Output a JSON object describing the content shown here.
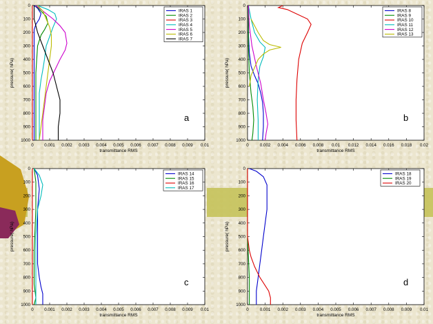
{
  "chart_data": [
    {
      "type": "line",
      "panel_letter": "a",
      "xlabel": "transmittance  RMS",
      "ylabel": "pressure(  hPa)",
      "xlim": [
        0,
        0.01
      ],
      "ylim": [
        1000,
        0
      ],
      "x_ticks": [
        "0",
        "0.001",
        "0.002",
        "0.003",
        "0.004",
        "0.005",
        "0.006",
        "0.007",
        "0.008",
        "0.009",
        "0.01"
      ],
      "y_ticks": [
        "0",
        "100",
        "200",
        "300",
        "400",
        "500",
        "600",
        "700",
        "800",
        "900",
        "1000"
      ],
      "legend_position": "top-right",
      "series": [
        {
          "name": "IRAS 1",
          "color": "#0000cc",
          "points": [
            [
              0.0001,
              0
            ],
            [
              0.0003,
              20
            ],
            [
              0.0005,
              60
            ],
            [
              0.0004,
              100
            ],
            [
              0.0002,
              140
            ],
            [
              0.0001,
              180
            ],
            [
              0.0001,
              250
            ],
            [
              0.0001,
              400
            ],
            [
              0.0001,
              700
            ],
            [
              0.0001,
              1000
            ]
          ]
        },
        {
          "name": "IRAS 2",
          "color": "#008800",
          "points": [
            [
              0.0002,
              0
            ],
            [
              0.0004,
              30
            ],
            [
              0.0008,
              80
            ],
            [
              0.0009,
              130
            ],
            [
              0.0007,
              180
            ],
            [
              0.0005,
              220
            ],
            [
              0.0003,
              300
            ],
            [
              0.0002,
              500
            ],
            [
              0.0002,
              800
            ],
            [
              0.0002,
              1000
            ]
          ]
        },
        {
          "name": "IRAS 3",
          "color": "#dd0000",
          "points": [
            [
              0,
              0
            ],
            [
              0,
              200
            ],
            [
              0,
              500
            ],
            [
              0,
              800
            ],
            [
              0,
              1000
            ]
          ]
        },
        {
          "name": "IRAS 4",
          "color": "#00bbbb",
          "points": [
            [
              0.0003,
              0
            ],
            [
              0.0009,
              30
            ],
            [
              0.0013,
              60
            ],
            [
              0.0014,
              100
            ],
            [
              0.0012,
              160
            ],
            [
              0.001,
              230
            ],
            [
              0.0008,
              300
            ],
            [
              0.0007,
              400
            ],
            [
              0.0006,
              480
            ],
            [
              0.0005,
              550
            ],
            [
              0.0004,
              650
            ],
            [
              0.0004,
              750
            ],
            [
              0.0004,
              850
            ],
            [
              0.0004,
              1000
            ]
          ]
        },
        {
          "name": "IRAS 5",
          "color": "#cc00cc",
          "points": [
            [
              0.0002,
              0
            ],
            [
              0.0006,
              40
            ],
            [
              0.0012,
              100
            ],
            [
              0.0016,
              150
            ],
            [
              0.0019,
              200
            ],
            [
              0.002,
              280
            ],
            [
              0.0019,
              330
            ],
            [
              0.0016,
              400
            ],
            [
              0.0013,
              480
            ],
            [
              0.001,
              560
            ],
            [
              0.0008,
              650
            ],
            [
              0.0007,
              750
            ],
            [
              0.0006,
              850
            ],
            [
              0.0006,
              1000
            ]
          ]
        },
        {
          "name": "IRAS 6",
          "color": "#bbbb00",
          "points": [
            [
              0.0003,
              0
            ],
            [
              0.0006,
              40
            ],
            [
              0.0008,
              100
            ],
            [
              0.001,
              160
            ],
            [
              0.0011,
              220
            ],
            [
              0.0011,
              300
            ],
            [
              0.001,
              400
            ],
            [
              0.0009,
              500
            ],
            [
              0.0008,
              600
            ],
            [
              0.0007,
              700
            ],
            [
              0.0006,
              800
            ],
            [
              0.0005,
              900
            ],
            [
              0.0004,
              1000
            ]
          ]
        },
        {
          "name": "IRAS 7",
          "color": "#000000",
          "points": [
            [
              0.0001,
              0
            ],
            [
              0.0001,
              100
            ],
            [
              0.0003,
              200
            ],
            [
              0.0006,
              300
            ],
            [
              0.0009,
              400
            ],
            [
              0.0012,
              500
            ],
            [
              0.0014,
              600
            ],
            [
              0.0016,
              700
            ],
            [
              0.0016,
              800
            ],
            [
              0.0015,
              900
            ],
            [
              0.0015,
              1000
            ]
          ]
        }
      ]
    },
    {
      "type": "line",
      "panel_letter": "b",
      "xlabel": "transmittance  RMS",
      "ylabel": "pressure(  hPa)",
      "xlim": [
        0,
        0.02
      ],
      "ylim": [
        1000,
        0
      ],
      "x_ticks": [
        "0",
        "0.002",
        "0.004",
        "0.006",
        "0.008",
        "0.01",
        "0.012",
        "0.014",
        "0.016",
        "0.018",
        "0.02"
      ],
      "y_ticks": [
        "0",
        "100",
        "200",
        "300",
        "400",
        "500",
        "600",
        "700",
        "800",
        "900",
        "1000"
      ],
      "legend_position": "top-right",
      "series": [
        {
          "name": "IRAS 8",
          "color": "#0000cc",
          "points": [
            [
              0.0001,
              0
            ],
            [
              0.0001,
              200
            ],
            [
              0.0002,
              350
            ],
            [
              0.0004,
              450
            ],
            [
              0.0008,
              520
            ],
            [
              0.0012,
              580
            ],
            [
              0.0015,
              650
            ],
            [
              0.0017,
              720
            ],
            [
              0.0018,
              800
            ],
            [
              0.0018,
              900
            ],
            [
              0.0017,
              1000
            ]
          ]
        },
        {
          "name": "IRAS 9",
          "color": "#008800",
          "points": [
            [
              0.0001,
              0
            ],
            [
              0.0001,
              300
            ],
            [
              0.0002,
              500
            ],
            [
              0.0004,
              650
            ],
            [
              0.0006,
              750
            ],
            [
              0.0007,
              850
            ],
            [
              0.0006,
              950
            ],
            [
              0.0005,
              1000
            ]
          ]
        },
        {
          "name": "IRAS 10",
          "color": "#dd0000",
          "points": [
            [
              0.004,
              0
            ],
            [
              0.0035,
              15
            ],
            [
              0.0045,
              30
            ],
            [
              0.0055,
              60
            ],
            [
              0.0068,
              100
            ],
            [
              0.0072,
              140
            ],
            [
              0.0068,
              200
            ],
            [
              0.0062,
              280
            ],
            [
              0.0058,
              400
            ],
            [
              0.0056,
              550
            ],
            [
              0.0055,
              700
            ],
            [
              0.0055,
              850
            ],
            [
              0.0056,
              1000
            ]
          ]
        },
        {
          "name": "IRAS 11",
          "color": "#00bbbb",
          "points": [
            [
              0.0001,
              0
            ],
            [
              0.0004,
              100
            ],
            [
              0.0008,
              200
            ],
            [
              0.0014,
              270
            ],
            [
              0.002,
              310
            ],
            [
              0.0018,
              380
            ],
            [
              0.0014,
              450
            ],
            [
              0.0012,
              550
            ],
            [
              0.0011,
              700
            ],
            [
              0.0012,
              850
            ],
            [
              0.0012,
              1000
            ]
          ]
        },
        {
          "name": "IRAS 12",
          "color": "#cc00cc",
          "points": [
            [
              0.0001,
              0
            ],
            [
              0.0002,
              150
            ],
            [
              0.0005,
              300
            ],
            [
              0.001,
              450
            ],
            [
              0.0015,
              580
            ],
            [
              0.0018,
              700
            ],
            [
              0.0021,
              800
            ],
            [
              0.0023,
              880
            ],
            [
              0.0021,
              950
            ],
            [
              0.002,
              1000
            ]
          ]
        },
        {
          "name": "IRAS 13",
          "color": "#bbbb00",
          "points": [
            [
              0.0004,
              100
            ],
            [
              0.0008,
              150
            ],
            [
              0.0012,
              200
            ],
            [
              0.0018,
              260
            ],
            [
              0.0025,
              290
            ],
            [
              0.0038,
              310
            ],
            [
              0.0025,
              330
            ],
            [
              0.0018,
              360
            ],
            [
              0.0012,
              400
            ],
            [
              0.0008,
              460
            ],
            [
              0.0004,
              520
            ],
            [
              0.0002,
              600
            ]
          ]
        }
      ]
    },
    {
      "type": "line",
      "panel_letter": "c",
      "xlabel": "transmittance  RMS",
      "ylabel": "pressure(  hPa)",
      "xlim": [
        0,
        0.01
      ],
      "ylim": [
        1000,
        0
      ],
      "x_ticks": [
        "0",
        "0.001",
        "0.002",
        "0.003",
        "0.004",
        "0.005",
        "0.006",
        "0.007",
        "0.008",
        "0.009",
        "0.01"
      ],
      "y_ticks": [
        "0",
        "100",
        "200",
        "300",
        "400",
        "500",
        "600",
        "700",
        "800",
        "900",
        "1000"
      ],
      "legend_position": "top-right",
      "series": [
        {
          "name": "IRAS 14",
          "color": "#0000cc",
          "points": [
            [
              0.0001,
              0
            ],
            [
              0.0003,
              50
            ],
            [
              0.0004,
              150
            ],
            [
              0.0003,
              300
            ],
            [
              0.0003,
              500
            ],
            [
              0.0003,
              700
            ],
            [
              0.0004,
              800
            ],
            [
              0.0005,
              870
            ],
            [
              0.0006,
              920
            ],
            [
              0.0006,
              1000
            ]
          ]
        },
        {
          "name": "IRAS 15",
          "color": "#008800",
          "points": [
            [
              0.0001,
              0
            ],
            [
              0.0002,
              100
            ],
            [
              0.0002,
              300
            ],
            [
              0.0001,
              600
            ],
            [
              0.0001,
              850
            ],
            [
              0.0002,
              950
            ],
            [
              0.0001,
              1000
            ]
          ]
        },
        {
          "name": "IRAS 16",
          "color": "#dd0000",
          "points": [
            [
              0,
              0
            ],
            [
              0,
              500
            ],
            [
              0,
              1000
            ]
          ]
        },
        {
          "name": "IRAS 17",
          "color": "#00bbbb",
          "points": [
            [
              0.0001,
              0
            ],
            [
              0.0004,
              50
            ],
            [
              0.0006,
              120
            ],
            [
              0.0005,
              200
            ],
            [
              0.0003,
              300
            ],
            [
              0.0002,
              500
            ],
            [
              0.0002,
              700
            ],
            [
              0.0002,
              1000
            ]
          ]
        }
      ]
    },
    {
      "type": "line",
      "panel_letter": "d",
      "xlabel": "transmittance  RMS",
      "ylabel": "pressure(  hPa)",
      "xlim": [
        0,
        0.01
      ],
      "ylim": [
        1000,
        0
      ],
      "x_ticks": [
        "0",
        "0.001",
        "0.002",
        "0.003",
        "0.004",
        "0.005",
        "0.006",
        "0.007",
        "0.008",
        "0.009",
        "0.01"
      ],
      "y_ticks": [
        "0",
        "100",
        "200",
        "300",
        "400",
        "500",
        "600",
        "700",
        "800",
        "900",
        "1000"
      ],
      "legend_position": "top-right",
      "series": [
        {
          "name": "IRAS 18",
          "color": "#0000cc",
          "points": [
            [
              0.0001,
              0
            ],
            [
              0.0005,
              20
            ],
            [
              0.0009,
              60
            ],
            [
              0.0011,
              120
            ],
            [
              0.0011,
              200
            ],
            [
              0.0011,
              300
            ],
            [
              0.001,
              400
            ],
            [
              0.0009,
              500
            ],
            [
              0.0008,
              600
            ],
            [
              0.0007,
              700
            ],
            [
              0.0006,
              800
            ],
            [
              0.0005,
              900
            ],
            [
              0.0005,
              1000
            ]
          ]
        },
        {
          "name": "IRAS 19",
          "color": "#008800",
          "points": [
            [
              0,
              0
            ],
            [
              0,
              500
            ],
            [
              0.0001,
              800
            ],
            [
              0.0001,
              1000
            ]
          ]
        },
        {
          "name": "IRAS 20",
          "color": "#dd0000",
          "points": [
            [
              0,
              0
            ],
            [
              0,
              500
            ],
            [
              0.0001,
              600
            ],
            [
              0.0002,
              650
            ],
            [
              0.0004,
              720
            ],
            [
              0.0007,
              800
            ],
            [
              0.001,
              860
            ],
            [
              0.0012,
              900
            ],
            [
              0.0013,
              950
            ],
            [
              0.0013,
              1000
            ]
          ]
        }
      ]
    }
  ]
}
